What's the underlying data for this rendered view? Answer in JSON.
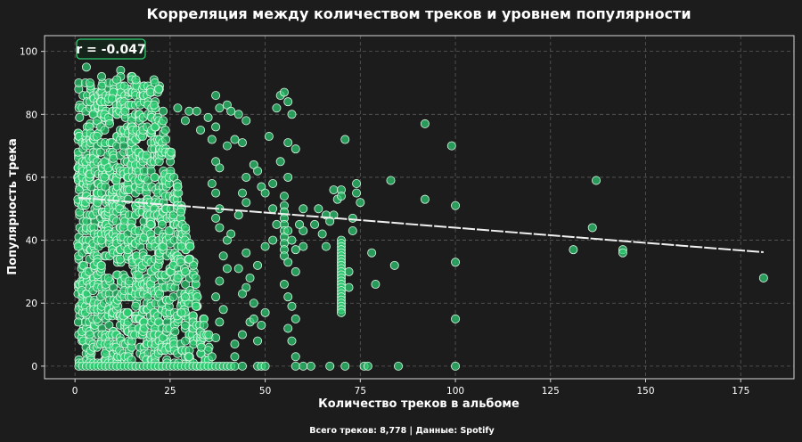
{
  "chart_data": {
    "type": "scatter",
    "title": "Корреляция между количеством треков и уровнем популярности",
    "xlabel": "Количество треков в альбоме",
    "ylabel": "Популярность трека",
    "xlim": [
      -8,
      189
    ],
    "ylim": [
      -4,
      105
    ],
    "xticks": [
      0,
      25,
      50,
      75,
      100,
      125,
      150,
      175
    ],
    "yticks": [
      0,
      20,
      40,
      60,
      80,
      100
    ],
    "grid": true,
    "colors": {
      "points": "#2ecc71",
      "trend": "#f0f0f0",
      "background": "#1c1c1c"
    },
    "annotation": "r = -0.047",
    "footer": "Всего треков: 8,778 | Данные: Spotify",
    "trend_line": {
      "x": [
        1,
        181
      ],
      "y": [
        53.5,
        36.2
      ]
    },
    "dense_region": {
      "x": [
        1,
        35
      ],
      "y": [
        0,
        95
      ]
    },
    "points": [
      [
        1,
        0
      ],
      [
        2,
        0
      ],
      [
        3,
        0
      ],
      [
        4,
        0
      ],
      [
        5,
        0
      ],
      [
        6,
        0
      ],
      [
        7,
        0
      ],
      [
        8,
        0
      ],
      [
        9,
        0
      ],
      [
        10,
        0
      ],
      [
        11,
        0
      ],
      [
        12,
        0
      ],
      [
        13,
        0
      ],
      [
        14,
        0
      ],
      [
        15,
        0
      ],
      [
        16,
        0
      ],
      [
        17,
        0
      ],
      [
        18,
        0
      ],
      [
        19,
        0
      ],
      [
        20,
        0
      ],
      [
        21,
        0
      ],
      [
        22,
        0
      ],
      [
        23,
        0
      ],
      [
        24,
        0
      ],
      [
        25,
        0
      ],
      [
        26,
        0
      ],
      [
        27,
        0
      ],
      [
        28,
        0
      ],
      [
        29,
        0
      ],
      [
        30,
        0
      ],
      [
        31,
        0
      ],
      [
        32,
        0
      ],
      [
        33,
        0
      ],
      [
        34,
        0
      ],
      [
        35,
        0
      ],
      [
        36,
        0
      ],
      [
        37,
        0
      ],
      [
        38,
        0
      ],
      [
        39,
        0
      ],
      [
        40,
        0
      ],
      [
        41,
        0
      ],
      [
        42,
        0
      ],
      [
        44,
        0
      ],
      [
        48,
        0
      ],
      [
        49,
        0
      ],
      [
        50,
        0
      ],
      [
        58,
        0
      ],
      [
        60,
        0
      ],
      [
        62,
        0
      ],
      [
        67,
        0
      ],
      [
        71,
        0
      ],
      [
        76,
        0
      ],
      [
        77,
        0
      ],
      [
        85,
        0
      ],
      [
        100,
        0
      ],
      [
        3,
        95
      ],
      [
        12,
        94
      ],
      [
        12,
        92
      ],
      [
        11,
        91
      ],
      [
        16,
        91
      ],
      [
        21,
        90
      ],
      [
        22,
        88
      ],
      [
        13,
        89
      ],
      [
        7,
        92
      ],
      [
        27,
        82
      ],
      [
        30,
        81
      ],
      [
        32,
        81
      ],
      [
        29,
        78
      ],
      [
        35,
        79
      ],
      [
        37,
        76
      ],
      [
        38,
        82
      ],
      [
        40,
        83
      ],
      [
        41,
        81
      ],
      [
        43,
        80
      ],
      [
        45,
        78
      ],
      [
        33,
        75
      ],
      [
        36,
        72
      ],
      [
        40,
        70
      ],
      [
        42,
        72
      ],
      [
        44,
        71
      ],
      [
        37,
        65
      ],
      [
        38,
        63
      ],
      [
        36,
        58
      ],
      [
        37,
        55
      ],
      [
        38,
        50
      ],
      [
        37,
        47
      ],
      [
        38,
        44
      ],
      [
        40,
        40
      ],
      [
        39,
        35
      ],
      [
        40,
        31
      ],
      [
        38,
        27
      ],
      [
        37,
        22
      ],
      [
        39,
        18
      ],
      [
        38,
        14
      ],
      [
        37,
        9
      ],
      [
        35,
        5
      ],
      [
        36,
        3
      ],
      [
        30,
        3
      ],
      [
        29,
        8
      ],
      [
        29,
        13
      ],
      [
        28,
        17
      ],
      [
        29,
        22
      ],
      [
        27,
        28
      ],
      [
        30,
        34
      ],
      [
        28,
        38
      ],
      [
        37,
        86
      ],
      [
        54,
        86
      ],
      [
        55,
        87
      ],
      [
        56,
        84
      ],
      [
        53,
        82
      ],
      [
        57,
        80
      ],
      [
        51,
        73
      ],
      [
        56,
        71
      ],
      [
        58,
        69
      ],
      [
        56,
        60
      ],
      [
        54,
        65
      ],
      [
        52,
        58
      ],
      [
        55,
        54
      ],
      [
        55,
        51
      ],
      [
        55,
        49
      ],
      [
        55,
        47
      ],
      [
        55,
        45
      ],
      [
        55,
        43
      ],
      [
        55,
        41
      ],
      [
        55,
        39
      ],
      [
        55,
        37
      ],
      [
        55,
        35
      ],
      [
        53,
        45
      ],
      [
        52,
        40
      ],
      [
        50,
        38
      ],
      [
        48,
        32
      ],
      [
        46,
        28
      ],
      [
        45,
        25
      ],
      [
        47,
        20
      ],
      [
        50,
        17
      ],
      [
        46,
        14
      ],
      [
        44,
        10
      ],
      [
        42,
        7
      ],
      [
        42,
        3
      ],
      [
        48,
        8
      ],
      [
        49,
        13
      ],
      [
        47,
        15
      ],
      [
        44,
        23
      ],
      [
        43,
        31
      ],
      [
        45,
        36
      ],
      [
        41,
        42
      ],
      [
        43,
        48
      ],
      [
        45,
        52
      ],
      [
        44,
        55
      ],
      [
        45,
        60
      ],
      [
        47,
        64
      ],
      [
        48,
        62
      ],
      [
        49,
        57
      ],
      [
        50,
        55
      ],
      [
        52,
        50
      ],
      [
        57,
        40
      ],
      [
        56,
        33
      ],
      [
        55,
        26
      ],
      [
        56,
        22
      ],
      [
        57,
        19
      ],
      [
        58,
        15
      ],
      [
        56,
        12
      ],
      [
        57,
        8
      ],
      [
        58,
        3
      ],
      [
        56,
        43
      ],
      [
        58,
        37
      ],
      [
        60,
        43
      ],
      [
        60,
        38
      ],
      [
        58,
        30
      ],
      [
        59,
        45
      ],
      [
        60,
        50
      ],
      [
        63,
        45
      ],
      [
        64,
        50
      ],
      [
        66,
        48
      ],
      [
        67,
        46
      ],
      [
        68,
        48
      ],
      [
        65,
        42
      ],
      [
        66,
        38
      ],
      [
        69,
        53
      ],
      [
        68,
        56
      ],
      [
        70,
        56
      ],
      [
        70,
        54
      ],
      [
        71,
        72
      ],
      [
        74,
        58
      ],
      [
        74,
        55
      ],
      [
        75,
        52
      ],
      [
        73,
        47
      ],
      [
        73,
        43
      ],
      [
        72,
        30
      ],
      [
        72,
        25
      ],
      [
        78,
        36
      ],
      [
        79,
        26
      ],
      [
        84,
        32
      ],
      [
        83,
        59
      ],
      [
        92,
        77
      ],
      [
        92,
        53
      ],
      [
        99,
        70
      ],
      [
        100,
        51
      ],
      [
        100,
        33
      ],
      [
        100,
        15
      ],
      [
        70,
        40
      ],
      [
        70,
        39
      ],
      [
        70,
        38
      ],
      [
        70,
        37
      ],
      [
        70,
        36
      ],
      [
        70,
        35
      ],
      [
        70,
        34
      ],
      [
        70,
        33
      ],
      [
        70,
        32
      ],
      [
        70,
        31
      ],
      [
        70,
        30
      ],
      [
        70,
        29
      ],
      [
        70,
        28
      ],
      [
        70,
        27
      ],
      [
        70,
        26
      ],
      [
        70,
        25
      ],
      [
        70,
        24
      ],
      [
        70,
        23
      ],
      [
        70,
        22
      ],
      [
        70,
        21
      ],
      [
        70,
        20
      ],
      [
        70,
        19
      ],
      [
        70,
        18
      ],
      [
        70,
        17
      ],
      [
        131,
        37
      ],
      [
        136,
        44
      ],
      [
        137,
        59
      ],
      [
        144,
        37
      ],
      [
        144,
        36
      ],
      [
        181,
        28
      ]
    ]
  }
}
